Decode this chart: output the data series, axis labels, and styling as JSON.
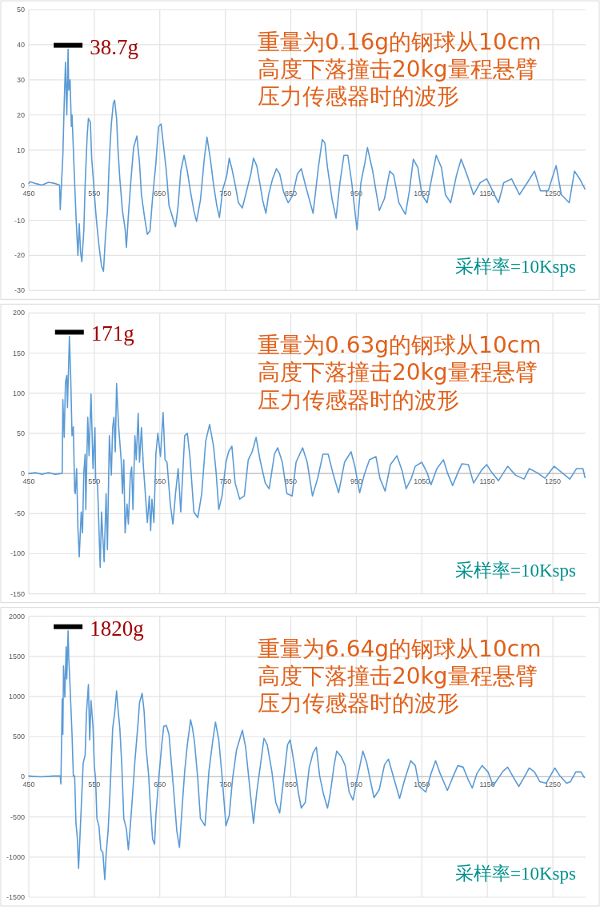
{
  "chart_data": [
    {
      "type": "line",
      "title": "重量为0.16g的钢球从10cm高度下落撞击20kg量程悬臂压力传感器时的波形",
      "xlim": [
        450,
        1300
      ],
      "xticks": [
        450,
        550,
        650,
        750,
        850,
        950,
        1050,
        1150,
        1250
      ],
      "ylim": [
        -30,
        50
      ],
      "yticks": [
        -30,
        -20,
        -10,
        0,
        10,
        20,
        30,
        40,
        50
      ],
      "grid": true,
      "color": "#5b9bd5",
      "x": [
        450,
        452,
        460,
        470,
        480,
        490,
        497,
        498,
        502,
        504,
        506,
        508,
        510,
        511,
        513,
        515,
        516,
        519,
        522,
        525,
        527,
        529,
        531,
        534,
        536,
        539,
        541,
        544,
        546,
        549,
        553,
        557,
        561,
        564,
        567,
        570,
        573,
        576,
        579,
        581,
        584,
        586,
        589,
        593,
        597,
        599,
        602,
        606,
        610,
        615,
        619,
        622,
        627,
        631,
        635,
        639,
        644,
        648,
        652,
        656,
        660,
        664,
        670,
        674,
        678,
        682,
        687,
        692,
        697,
        702,
        706,
        712,
        718,
        722,
        727,
        732,
        737,
        741,
        746,
        752,
        756,
        760,
        765,
        770,
        776,
        783,
        789,
        793,
        798,
        803,
        807,
        812,
        816,
        822,
        828,
        833,
        839,
        846,
        853,
        860,
        866,
        873,
        884,
        892,
        898,
        902,
        906,
        913,
        919,
        925,
        931,
        937,
        943,
        951,
        957,
        963,
        967,
        975,
        985,
        993,
        1001,
        1007,
        1015,
        1025,
        1031,
        1037,
        1044,
        1050,
        1058,
        1066,
        1072,
        1080,
        1086,
        1094,
        1103,
        1110,
        1119,
        1129,
        1139,
        1149,
        1158,
        1167,
        1175,
        1187,
        1199,
        1211,
        1222,
        1231,
        1243,
        1255,
        1263,
        1275,
        1283,
        1291,
        1299
      ],
      "values": [
        0.5,
        1,
        0.5,
        0,
        0.8,
        0.5,
        0,
        -7,
        8.5,
        23,
        35,
        20,
        38.7,
        27,
        30,
        16.7,
        20,
        5.5,
        -8.7,
        -20,
        -11,
        -19,
        -21.8,
        -13,
        0.2,
        13.7,
        19,
        18,
        7.7,
        0.2,
        -9.5,
        -17,
        -23,
        -24.5,
        -14.7,
        -7.3,
        7.7,
        17.4,
        23.3,
        24.2,
        19,
        10.7,
        1.7,
        -7.3,
        -12.5,
        -17.7,
        -8.7,
        1.7,
        10.7,
        14,
        6.3,
        -2.8,
        -9.5,
        -14,
        -13,
        -3.5,
        6.3,
        16.7,
        17.4,
        10.7,
        4,
        -5.8,
        -9.5,
        -11.8,
        -5.8,
        4,
        8.5,
        4,
        -2,
        -7.3,
        -10.3,
        -4.3,
        7.7,
        13.7,
        7.7,
        0.2,
        -5.8,
        -9.2,
        -1.3,
        2.5,
        7.7,
        4.7,
        0.2,
        -5,
        -6.5,
        -1.3,
        3.2,
        7.7,
        5.5,
        0.2,
        -4.3,
        -8,
        -2.8,
        1.7,
        4.7,
        3.2,
        -2,
        -5,
        -2.8,
        3.2,
        4.7,
        -0.5,
        -8,
        5,
        13,
        12,
        5,
        -4,
        -9.4,
        0.7,
        8.5,
        8.5,
        0.7,
        -12.7,
        0.7,
        6.3,
        10.7,
        4,
        -7.2,
        -3.8,
        4,
        2.9,
        -5,
        -8.3,
        -1.6,
        7.4,
        5,
        -2.7,
        -5,
        2.9,
        8.5,
        5,
        -2.7,
        -5,
        2.9,
        7.4,
        2.9,
        -2.7,
        0.7,
        1.8,
        -1.6,
        -5,
        0.7,
        1.8,
        -2.7,
        0.7,
        4,
        -1.6,
        -1.6,
        5.6,
        -2.7,
        -5,
        4,
        1.8,
        -1.1
      ],
      "annotations": [
        "38.7g",
        "采样率=10Ksps"
      ]
    },
    {
      "type": "line",
      "title": "重量为0.63g的钢球从10cm高度下落撞击20kg量程悬臂压力传感器时的波形",
      "xlim": [
        450,
        1300
      ],
      "xticks": [
        450,
        550,
        650,
        750,
        850,
        950,
        1050,
        1150,
        1250
      ],
      "ylim": [
        -150,
        200
      ],
      "yticks": [
        -150,
        -100,
        -50,
        0,
        50,
        100,
        150,
        200
      ],
      "grid": true,
      "color": "#5b9bd5",
      "x": [
        450,
        460,
        470,
        480,
        490,
        500,
        501,
        502,
        504,
        506,
        508,
        509,
        512,
        514,
        516,
        518,
        520,
        521,
        523,
        525,
        527,
        530,
        532,
        534,
        536,
        537,
        540,
        542,
        545,
        548,
        551,
        552,
        555,
        559,
        561,
        565,
        568,
        570,
        573,
        576,
        578,
        580,
        582,
        584,
        587,
        591,
        593,
        595,
        597,
        600,
        602,
        605,
        607,
        609,
        612,
        614,
        617,
        619,
        622,
        625,
        631,
        634,
        636,
        638,
        641,
        644,
        647,
        651,
        655,
        658,
        661,
        666,
        670,
        674,
        678,
        682,
        688,
        692,
        696,
        702,
        708,
        714,
        720,
        726,
        732,
        736,
        740,
        745,
        751,
        755,
        760,
        765,
        772,
        779,
        785,
        791,
        797,
        803,
        811,
        817,
        825,
        830,
        837,
        844,
        852,
        858,
        868,
        875,
        883,
        891,
        899,
        907,
        915,
        923,
        932,
        942,
        948,
        955,
        962,
        970,
        980,
        986,
        994,
        1002,
        1012,
        1020,
        1026,
        1034,
        1040,
        1050,
        1058,
        1064,
        1073,
        1083,
        1089,
        1097,
        1105,
        1111,
        1121,
        1129,
        1141,
        1149,
        1157,
        1167,
        1181,
        1193,
        1206,
        1214,
        1226,
        1238,
        1252,
        1264,
        1276,
        1286,
        1296,
        1299
      ],
      "values": [
        0,
        1,
        -1,
        1,
        -1,
        0,
        1,
        92,
        45,
        114,
        122,
        82,
        171,
        119,
        47,
        58,
        -22,
        -25,
        6,
        -68,
        -104,
        -48,
        -74,
        1,
        24,
        -45,
        70,
        22,
        99,
        6,
        57,
        -6,
        -15,
        -117,
        -48,
        -110,
        -25,
        -95,
        47,
        -2,
        57,
        70,
        27,
        112,
        60,
        17,
        -25,
        17,
        -74,
        -38,
        -63,
        -2,
        8,
        -45,
        47,
        17,
        75,
        14,
        57,
        8,
        -61,
        -28,
        -71,
        -32,
        -61,
        24,
        50,
        21,
        76,
        17,
        14,
        -38,
        -63,
        -25,
        6,
        -48,
        47,
        50,
        21,
        -48,
        -55,
        -25,
        40,
        61,
        34,
        1,
        -45,
        -28,
        14,
        27,
        34,
        -12,
        -32,
        -28,
        17,
        27,
        45,
        17,
        -12,
        -19,
        24,
        32,
        14,
        -25,
        -28,
        14,
        32,
        14,
        -28,
        -6,
        24,
        24,
        -2,
        -24,
        14,
        27,
        8,
        -24,
        -2,
        17,
        21,
        -6,
        -22,
        11,
        22,
        3,
        -19,
        -6,
        9,
        14,
        1,
        -14,
        6,
        17,
        1,
        -15,
        1,
        12,
        11,
        -12,
        4,
        11,
        1,
        -9,
        9,
        -2,
        -7,
        6,
        1,
        -6,
        9,
        1,
        -7,
        6,
        6,
        -5
      ],
      "annotations": [
        "171g",
        "采样率=10Ksps"
      ]
    },
    {
      "type": "line",
      "title": "重量为6.64g的钢球从10cm高度下落撞击20kg量程悬臂压力传感器时的波形",
      "xlim": [
        450,
        1300
      ],
      "xticks": [
        450,
        550,
        650,
        750,
        850,
        950,
        1050,
        1150,
        1250
      ],
      "ylim": [
        -1500,
        2000
      ],
      "yticks": [
        -1500,
        -1000,
        -500,
        0,
        500,
        1000,
        1500,
        2000
      ],
      "grid": true,
      "color": "#5b9bd5",
      "x": [
        450,
        468,
        488,
        498,
        499,
        501,
        502,
        503,
        505,
        506,
        507,
        508,
        510,
        511,
        513,
        516,
        518,
        520,
        522,
        524,
        526,
        528,
        530,
        533,
        536,
        538,
        541,
        543,
        545,
        548,
        550,
        552,
        554,
        557,
        560,
        563,
        566,
        568,
        571,
        574,
        576,
        578,
        581,
        584,
        586,
        589,
        592,
        595,
        599,
        602,
        605,
        609,
        612,
        617,
        619,
        623,
        626,
        629,
        633,
        636,
        639,
        642,
        644,
        649,
        653,
        656,
        660,
        664,
        668,
        672,
        676,
        680,
        684,
        688,
        692,
        697,
        700,
        703,
        708,
        712,
        719,
        725,
        731,
        735,
        740,
        745,
        751,
        756,
        761,
        767,
        776,
        781,
        786,
        793,
        798,
        804,
        809,
        814,
        821,
        827,
        833,
        839,
        845,
        849,
        855,
        862,
        866,
        872,
        878,
        884,
        889,
        894,
        900,
        906,
        910,
        916,
        920,
        927,
        933,
        939,
        945,
        951,
        955,
        960,
        966,
        971,
        977,
        985,
        993,
        999,
        1006,
        1016,
        1024,
        1033,
        1040,
        1046,
        1056,
        1064,
        1071,
        1078,
        1089,
        1097,
        1105,
        1113,
        1121,
        1127,
        1134,
        1142,
        1151,
        1159,
        1174,
        1181,
        1190,
        1198,
        1206,
        1214,
        1222,
        1230,
        1240,
        1253,
        1260,
        1271,
        1277,
        1285,
        1293,
        1298
      ],
      "values": [
        10,
        0,
        10,
        10,
        -90,
        970,
        530,
        1380,
        990,
        1310,
        1620,
        1220,
        1820,
        1480,
        1120,
        530,
        10,
        10,
        -580,
        -750,
        -1140,
        -760,
        -390,
        170,
        270,
        790,
        1150,
        460,
        950,
        630,
        140,
        -30,
        -520,
        -610,
        -910,
        -940,
        -1280,
        -970,
        -680,
        -190,
        200,
        600,
        790,
        1070,
        860,
        600,
        140,
        -520,
        -650,
        -910,
        -610,
        -160,
        200,
        690,
        920,
        1040,
        820,
        370,
        10,
        -420,
        -780,
        -840,
        -480,
        40,
        400,
        630,
        640,
        530,
        140,
        -260,
        -680,
        -880,
        -390,
        70,
        400,
        710,
        600,
        430,
        -30,
        -520,
        -610,
        70,
        460,
        680,
        460,
        10,
        -610,
        -480,
        -30,
        330,
        580,
        370,
        -30,
        -580,
        -190,
        170,
        480,
        400,
        70,
        -320,
        -450,
        -30,
        400,
        460,
        170,
        -220,
        -390,
        -320,
        110,
        300,
        370,
        10,
        -220,
        -390,
        -220,
        140,
        320,
        250,
        140,
        -190,
        -290,
        -30,
        120,
        320,
        170,
        -30,
        -260,
        -160,
        150,
        220,
        20,
        -270,
        -30,
        200,
        140,
        -120,
        -190,
        40,
        200,
        40,
        -170,
        -10,
        140,
        120,
        -40,
        -140,
        40,
        140,
        60,
        -110,
        70,
        120,
        -10,
        -120,
        -10,
        110,
        60,
        -60,
        -80,
        110,
        20,
        -80,
        -60,
        60,
        60,
        -10
      ],
      "annotations": [
        "1820g",
        "采样率=10Ksps"
      ]
    }
  ]
}
